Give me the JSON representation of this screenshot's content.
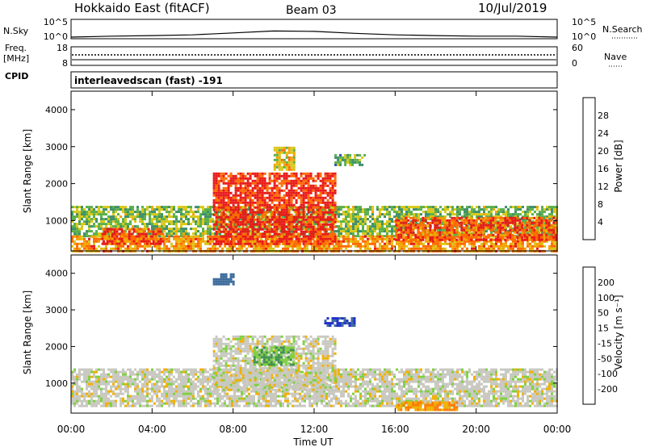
{
  "header": {
    "station": "Hokkaido East (fitACF)",
    "beam": "Beam 03",
    "date": "10/Jul/2019"
  },
  "strips": {
    "nsky": {
      "label": "N.Sky",
      "ticks": [
        "10^5",
        "10^0"
      ],
      "right_label": "N.Search",
      "right_ticks": [
        "10^5",
        "10^0"
      ]
    },
    "freq": {
      "label_line1": "Freq.",
      "label_line2": "[MHz]",
      "ticks": [
        "18",
        "8"
      ],
      "right_label": "Nave",
      "right_ticks": [
        "60",
        "0"
      ]
    },
    "cpid": {
      "label": "CPID",
      "mode": "interleavedscan (fast) -191"
    }
  },
  "panels": {
    "power": {
      "ylabel": "Slant Range [km]",
      "yticks": [
        "4000",
        "3000",
        "2000",
        "1000"
      ],
      "colorbar_label": "Power [dB]",
      "colorbar_ticks": [
        "28",
        "24",
        "20",
        "16",
        "12",
        "8",
        "4"
      ],
      "colors": [
        "#1818e8",
        "#2a52b8",
        "#3f8f6a",
        "#5ab04a",
        "#d8c818",
        "#f2a400",
        "#ff6a00",
        "#e81a1a"
      ]
    },
    "velocity": {
      "ylabel": "Slant Range [km]",
      "yticks": [
        "4000",
        "3000",
        "2000",
        "1000"
      ],
      "colorbar_label": "Velocity [m s⁻¹]",
      "colorbar_ticks": [
        "200",
        "100",
        "50",
        "15",
        "-15",
        "-50",
        "-100",
        "-200"
      ],
      "colors": [
        "#1f2fc8",
        "#3a6a9a",
        "#3f9050",
        "#7fd040",
        "#c8c8c0",
        "#f0b000",
        "#ff7a00",
        "#ff3300",
        "#e01010"
      ]
    }
  },
  "xaxis": {
    "ticks": [
      "00:00",
      "04:00",
      "08:00",
      "12:00",
      "16:00",
      "20:00",
      "00:00"
    ],
    "label": "Time UT"
  },
  "chart_data": [
    {
      "type": "line",
      "title": "N.Sky",
      "xlabel": "Time UT",
      "scale": "log",
      "ylim": [
        1,
        100000
      ],
      "x": [
        0,
        2,
        4,
        6,
        8,
        10,
        12,
        14,
        16,
        18,
        20,
        22,
        24
      ],
      "y": [
        1,
        2,
        3,
        5,
        20,
        80,
        60,
        15,
        5,
        3,
        2,
        2,
        1
      ]
    },
    {
      "type": "heatmap",
      "title": "Power [dB]",
      "xlabel": "Time UT",
      "ylabel": "Slant Range [km]",
      "xlim": [
        0,
        24
      ],
      "ylim": [
        180,
        4500
      ],
      "zlim": [
        0,
        30
      ],
      "regions": [
        {
          "t": [
            0,
            24
          ],
          "range": [
            600,
            1400
          ],
          "value": 14
        },
        {
          "t": [
            0,
            24
          ],
          "range": [
            180,
            600
          ],
          "value": 22
        },
        {
          "t": [
            1.5,
            4.5
          ],
          "range": [
            400,
            800
          ],
          "value": 26
        },
        {
          "t": [
            7,
            13
          ],
          "range": [
            400,
            2300
          ],
          "value": 28
        },
        {
          "t": [
            10,
            11
          ],
          "range": [
            2400,
            3000
          ],
          "value": 18
        },
        {
          "t": [
            13,
            14.5
          ],
          "range": [
            2500,
            2800
          ],
          "value": 12
        },
        {
          "t": [
            16,
            24
          ],
          "range": [
            500,
            1100
          ],
          "value": 26
        }
      ]
    },
    {
      "type": "heatmap",
      "title": "Velocity [m s⁻¹]",
      "xlabel": "Time UT",
      "ylabel": "Slant Range [km]",
      "xlim": [
        0,
        24
      ],
      "ylim": [
        180,
        4500
      ],
      "zlim": [
        -200,
        200
      ],
      "regions": [
        {
          "t": [
            0,
            24
          ],
          "range": [
            400,
            1400
          ],
          "value": 0
        },
        {
          "t": [
            7,
            13
          ],
          "range": [
            800,
            2300
          ],
          "value": 0
        },
        {
          "t": [
            9,
            11
          ],
          "range": [
            1500,
            2000
          ],
          "value": 50
        },
        {
          "t": [
            12.5,
            14
          ],
          "range": [
            2600,
            2800
          ],
          "value": 200
        },
        {
          "t": [
            7,
            8
          ],
          "range": [
            3700,
            4000
          ],
          "value": 150
        },
        {
          "t": [
            16,
            19
          ],
          "range": [
            300,
            500
          ],
          "value": -50
        }
      ]
    }
  ]
}
